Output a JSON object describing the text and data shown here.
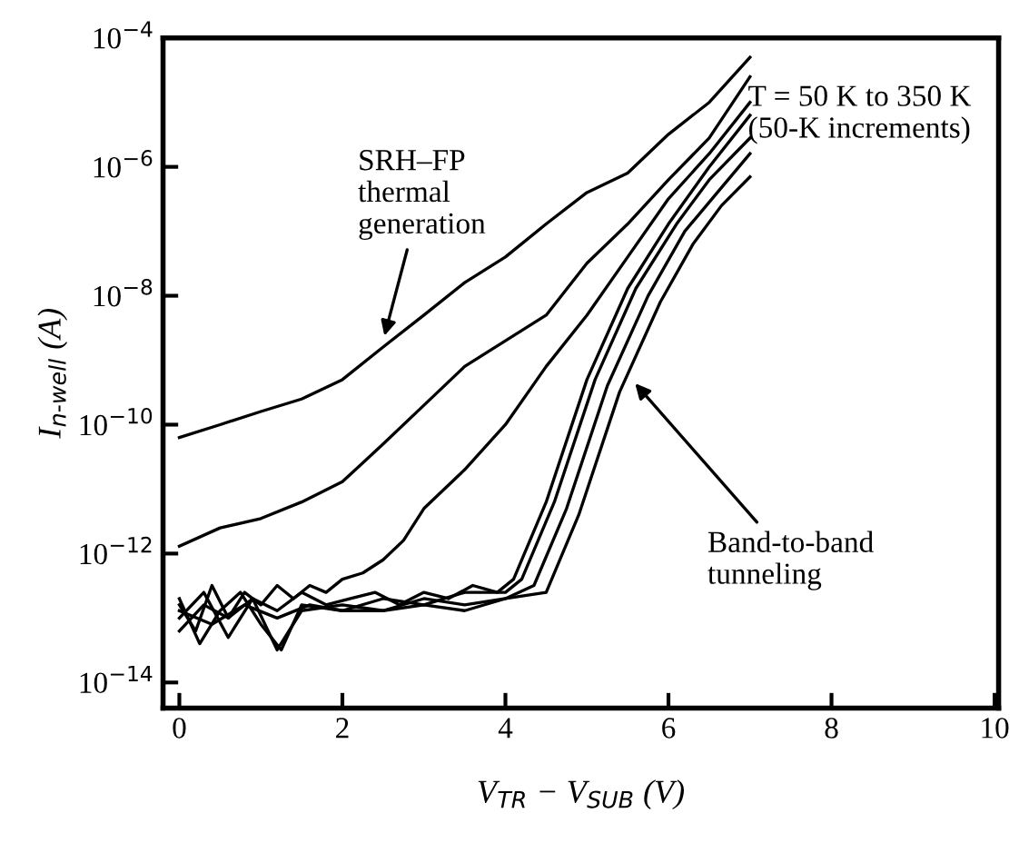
{
  "chart_data": {
    "type": "line",
    "xlabel": "V$_{TR}$ − V$_{SUB}$ (V)",
    "ylabel": "I$_{n‐well}$ (A)",
    "log": "y",
    "grid": false,
    "marker": "none",
    "line_style": "solid",
    "xlim": [
      -0.2,
      10.05
    ],
    "xticks": [
      0,
      2,
      4,
      6,
      8,
      10
    ],
    "ylim": [
      4e-15,
      0.0001
    ],
    "yticks": [
      {
        "value": 1e-14,
        "label": "10$^{−14}$"
      },
      {
        "value": 1e-12,
        "label": "10$^{−12}$"
      },
      {
        "value": 1e-10,
        "label": "10$^{−10}$"
      },
      {
        "value": 1e-08,
        "label": "10$^{−8}$"
      },
      {
        "value": 1e-06,
        "label": "10$^{−6}$"
      },
      {
        "value": 0.0001,
        "label": "10$^{−4}$"
      }
    ],
    "annotations": [
      "T = 50 K to 350 K\n(50-K increments)",
      {
        "text": "SRH–FP\nthermal\ngeneration",
        "x": 2.5,
        "y": 2e-09
      },
      {
        "text": "Band-to-band\ntunneling",
        "x": 5.55,
        "y": 5e-10
      }
    ],
    "series": [
      {
        "color": "#000000",
        "x": [
          0,
          0.5,
          1,
          1.5,
          2,
          2.5,
          3,
          3.5,
          4,
          4.5,
          5,
          5.5,
          6,
          6.5,
          7
        ],
        "values": [
          6.3e-11,
          1e-10,
          1.6e-10,
          2.5e-10,
          5e-10,
          1.6e-09,
          5e-09,
          1.6e-08,
          4e-08,
          1.3e-07,
          4e-07,
          8e-07,
          3.2e-06,
          1e-05,
          5e-05
        ]
      },
      {
        "color": "#000000",
        "x": [
          0,
          0.5,
          1,
          1.5,
          2,
          2.5,
          3,
          3.5,
          4,
          4.5,
          5,
          5.5,
          6,
          6.5,
          7
        ],
        "values": [
          1.3e-12,
          2.5e-12,
          3.5e-12,
          6.3e-12,
          1.3e-11,
          5e-11,
          2e-10,
          8e-10,
          2e-09,
          5e-09,
          3.2e-08,
          1.3e-07,
          6.3e-07,
          2.8e-06,
          2.5e-05
        ]
      },
      {
        "color": "#000000",
        "x": [
          0,
          0.2,
          0.4,
          0.6,
          0.8,
          1,
          1.2,
          1.4,
          1.6,
          1.8,
          2,
          2.25,
          2.5,
          2.75,
          3,
          3.5,
          4,
          4.5,
          5,
          5.5,
          6,
          6.5,
          7
        ],
        "values": [
          1.6e-13,
          6.3e-14,
          3.2e-13,
          1e-13,
          2.5e-13,
          1.6e-13,
          3.2e-13,
          2e-13,
          3.2e-13,
          2.5e-13,
          4e-13,
          5e-13,
          8e-13,
          1.6e-12,
          5e-12,
          2e-11,
          1e-10,
          8e-10,
          5e-09,
          4e-08,
          3.2e-07,
          1.6e-06,
          1e-05
        ]
      },
      {
        "color": "#000000",
        "x": [
          0,
          0.3,
          0.6,
          0.9,
          1.2,
          1.5,
          1.8,
          2.1,
          2.4,
          2.7,
          3.0,
          3.3,
          3.6,
          3.9,
          4.1,
          4.5,
          5,
          5.5,
          6,
          6.5,
          7
        ],
        "values": [
          1e-13,
          2.5e-13,
          5e-14,
          2e-13,
          1.3e-13,
          2.5e-13,
          1.6e-13,
          2e-13,
          2.5e-13,
          1.6e-13,
          2.5e-13,
          2e-13,
          3.2e-13,
          2.5e-13,
          4e-13,
          6.3e-12,
          5e-10,
          1.3e-08,
          1.3e-07,
          1e-06,
          6.3e-06
        ]
      },
      {
        "color": "#000000",
        "x": [
          0,
          0.25,
          0.5,
          0.75,
          1,
          1.25,
          1.5,
          2,
          2.5,
          3,
          3.5,
          4,
          4.2,
          4.6,
          5.1,
          5.6,
          6.1,
          6.5,
          7
        ],
        "values": [
          2e-13,
          4e-14,
          1.3e-13,
          2.5e-13,
          8e-14,
          3.2e-14,
          1.6e-13,
          1.3e-13,
          2e-13,
          1.6e-13,
          2.5e-13,
          2.5e-13,
          4e-13,
          6.3e-12,
          5e-10,
          1.3e-08,
          1.3e-07,
          6.3e-07,
          2.8e-06
        ]
      },
      {
        "color": "#000000",
        "x": [
          0,
          0.3,
          0.6,
          0.9,
          1.2,
          1.5,
          2,
          2.5,
          3,
          3.5,
          4,
          4.35,
          4.75,
          5.25,
          5.75,
          6.2,
          6.6,
          7
        ],
        "values": [
          6.3e-14,
          1.6e-13,
          1e-13,
          2e-13,
          3.2e-14,
          1.3e-13,
          1.6e-13,
          1.3e-13,
          2e-13,
          1.6e-13,
          2e-13,
          3.2e-13,
          5e-12,
          4e-10,
          1e-08,
          1e-07,
          4e-07,
          1.6e-06
        ]
      },
      {
        "color": "#000000",
        "x": [
          0,
          0.4,
          0.8,
          1.2,
          1.6,
          2,
          2.5,
          3,
          3.5,
          4,
          4.5,
          4.9,
          5.4,
          5.9,
          6.3,
          6.65,
          7
        ],
        "values": [
          1.3e-13,
          8e-14,
          1.6e-13,
          1e-13,
          1.6e-13,
          1.3e-13,
          1.3e-13,
          1.6e-13,
          1.3e-13,
          2e-13,
          2.5e-13,
          4e-12,
          3.2e-10,
          8e-09,
          6.3e-08,
          2.5e-07,
          7e-07
        ]
      }
    ]
  }
}
